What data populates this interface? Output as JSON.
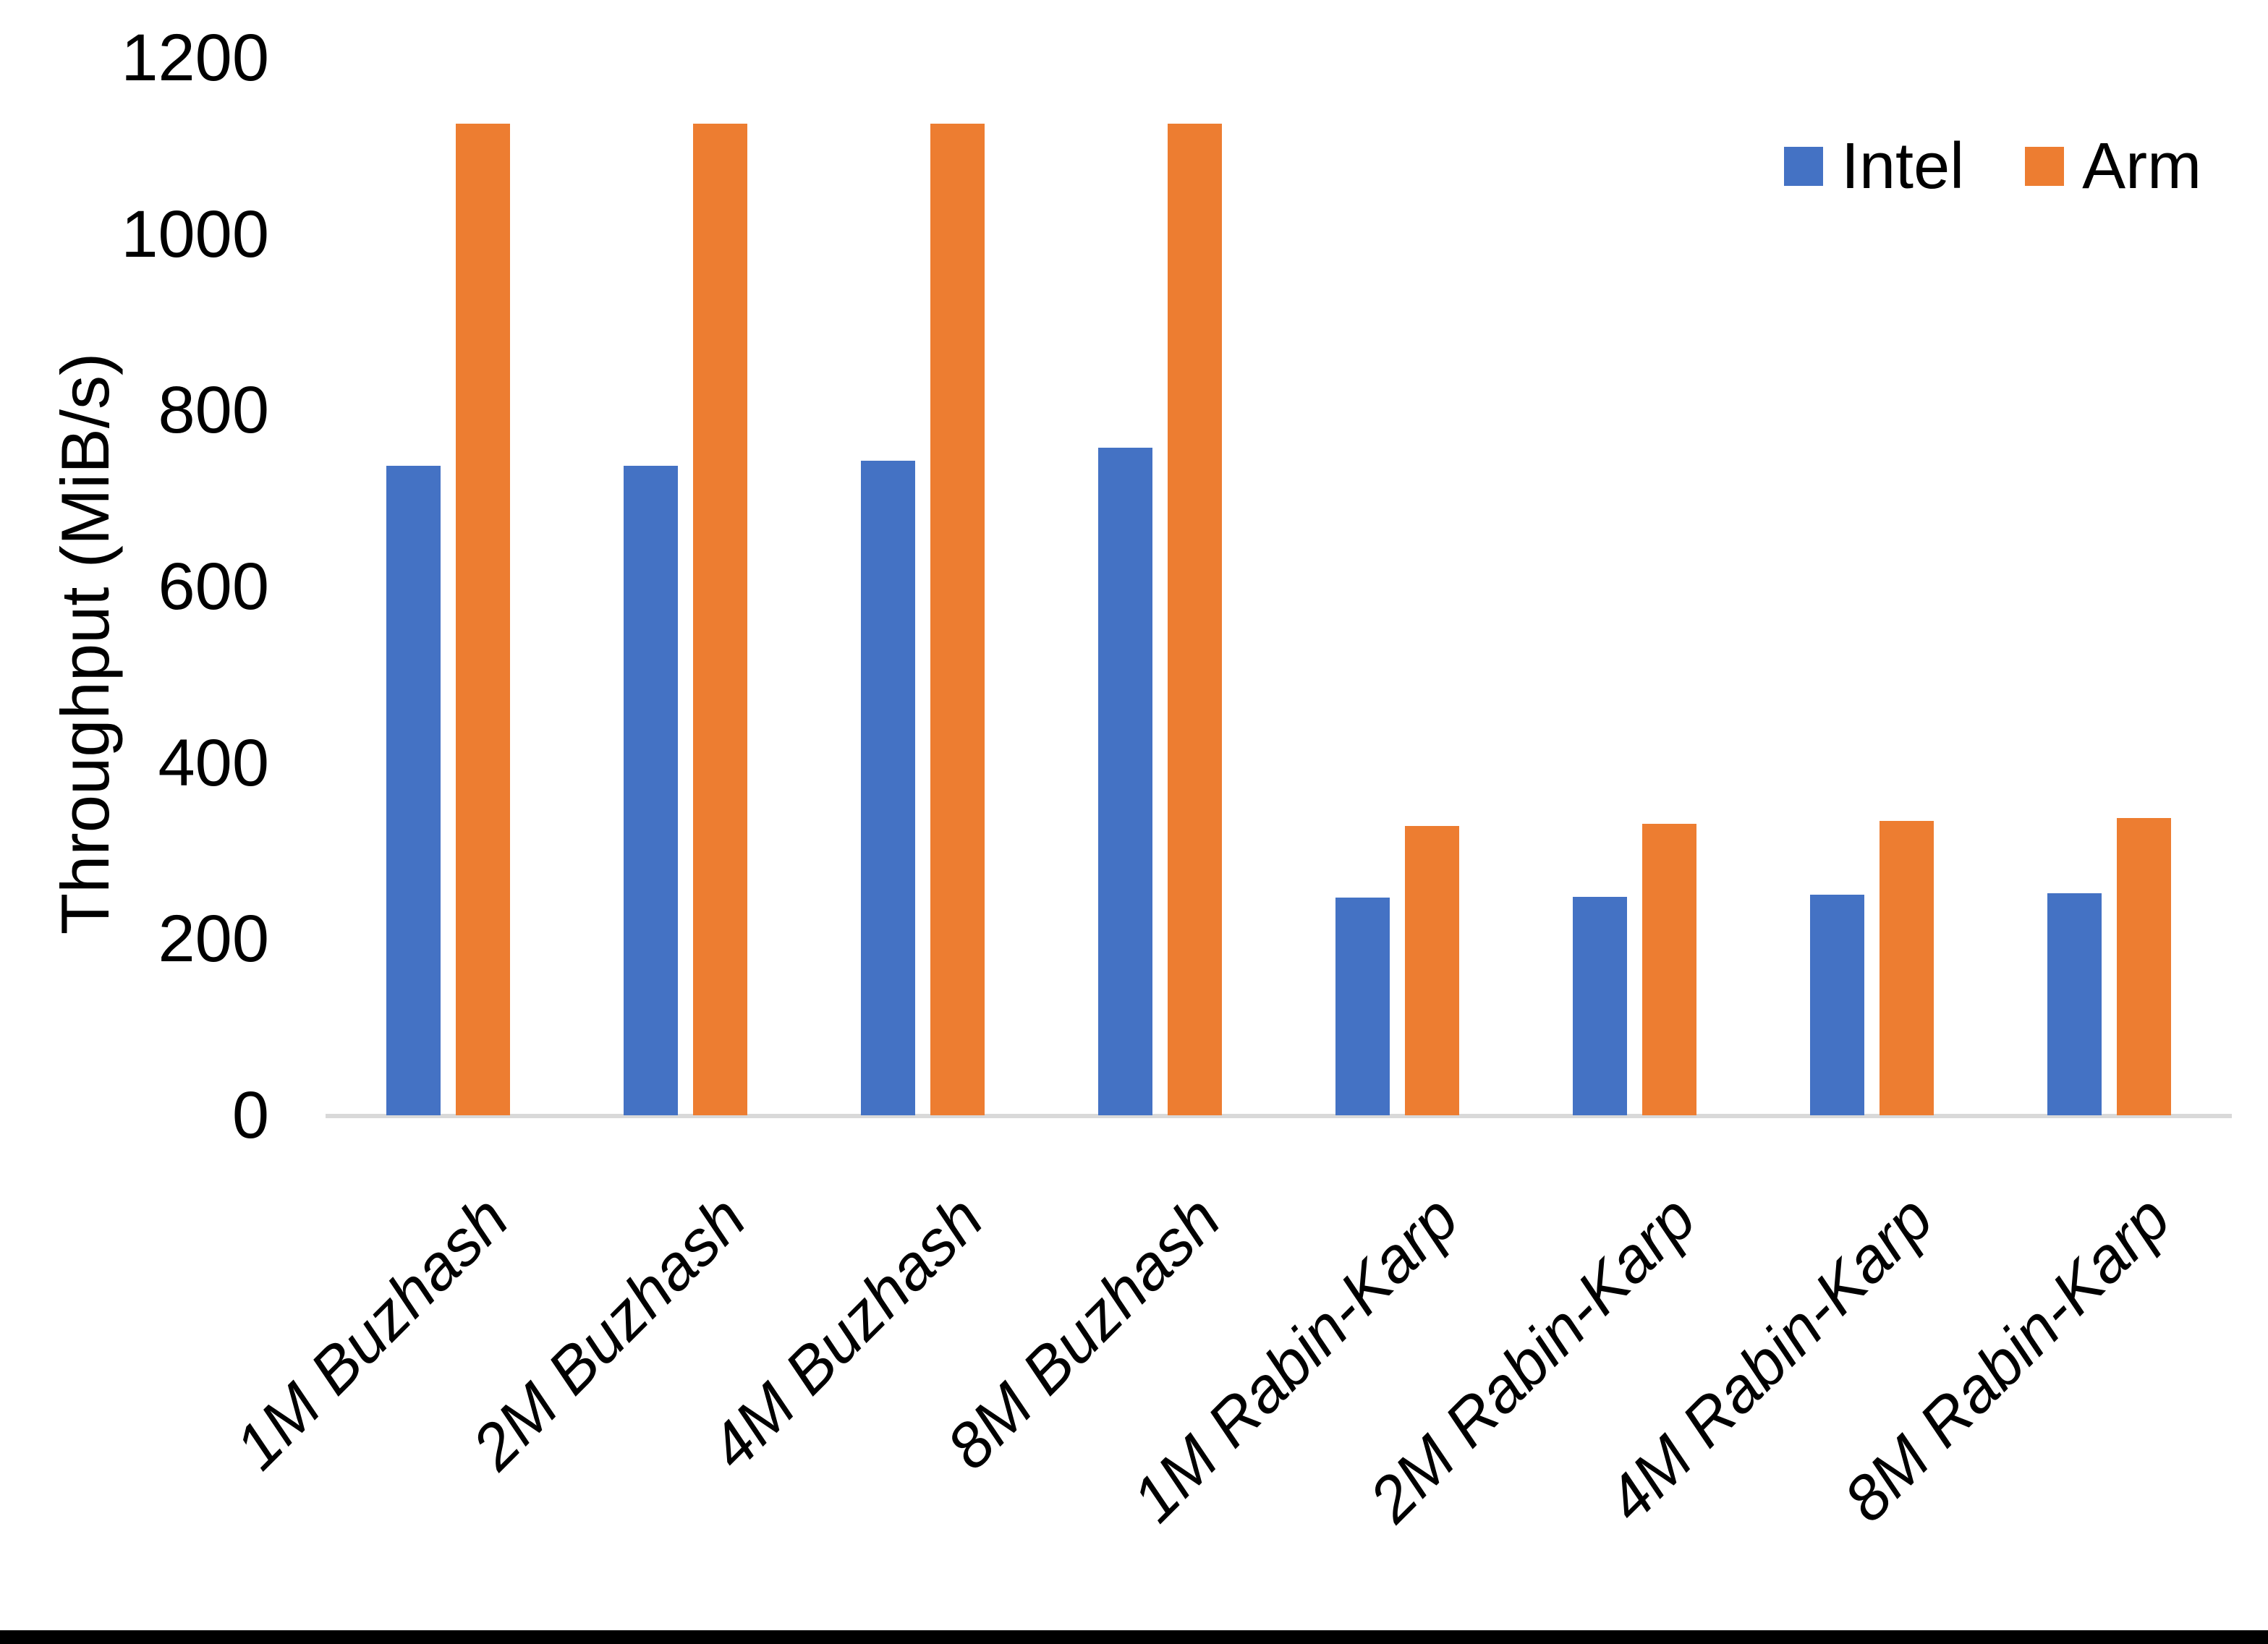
{
  "chart_data": {
    "type": "bar",
    "title": "",
    "xlabel": "",
    "ylabel": "Throughput (MiB/s)",
    "categories": [
      "1M Buzhash",
      "2M Buzhash",
      "4M Buzhash",
      "8M Buzhash",
      "1M Rabin-Karp",
      "2M Rabin-Karp",
      "4M Rabin-Karp",
      "8M Rabin-Karp"
    ],
    "series": [
      {
        "name": "Intel",
        "color": "#4472C4",
        "values": [
          737,
          737,
          743,
          758,
          247,
          248,
          250,
          252
        ]
      },
      {
        "name": "Arm",
        "color": "#ED7D31",
        "values": [
          1125,
          1125,
          1125,
          1125,
          328,
          331,
          334,
          337
        ]
      }
    ],
    "ylim": [
      0,
      1200
    ],
    "yticks": [
      0,
      200,
      400,
      600,
      800,
      1000,
      1200
    ],
    "grid": false,
    "legend_position": "top-right",
    "colors": {
      "axis_line": "#D9D9D9",
      "text": "#000000",
      "background": "#FFFFFF",
      "bottom_strip": "#000000"
    }
  }
}
